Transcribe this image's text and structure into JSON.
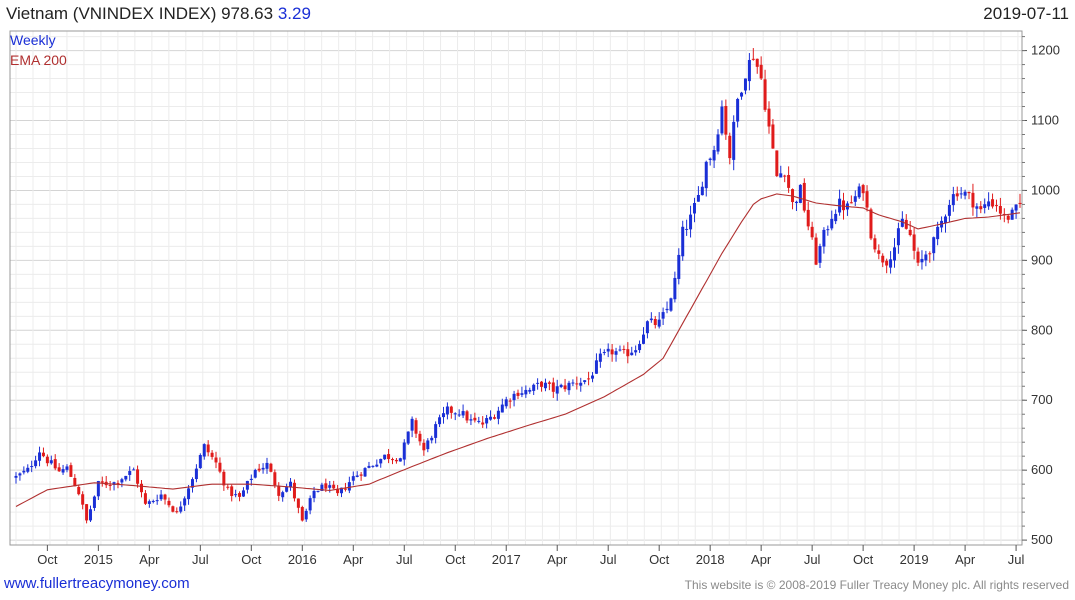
{
  "header": {
    "symbol": "Vietnam (VNINDEX INDEX)",
    "last": "978.63",
    "change": "3.29",
    "date": "2019-07-11"
  },
  "footer": {
    "site": "www.fullertreacymoney.com",
    "copyright": "This website is © 2008-2019 Fuller Treacy Money plc. All rights reserved"
  },
  "chart_data": {
    "type": "candlestick",
    "grid": true,
    "legend": [
      {
        "name": "Weekly",
        "color": "#1a2fd6"
      },
      {
        "name": "EMA 200",
        "color": "#b03030"
      }
    ],
    "colors": {
      "up": "#1a2fd6",
      "down": "#e01b1b",
      "ema": "#b03030"
    },
    "y_ticks": [
      500,
      600,
      700,
      800,
      900,
      1000,
      1100,
      1200
    ],
    "ylim": [
      493,
      1228
    ],
    "x_ticks": [
      {
        "label": "Oct",
        "index": 8
      },
      {
        "label": "2015",
        "index": 21
      },
      {
        "label": "Apr",
        "index": 34
      },
      {
        "label": "Jul",
        "index": 47
      },
      {
        "label": "Oct",
        "index": 60
      },
      {
        "label": "2016",
        "index": 73
      },
      {
        "label": "Apr",
        "index": 86
      },
      {
        "label": "Jul",
        "index": 99
      },
      {
        "label": "Oct",
        "index": 112
      },
      {
        "label": "2017",
        "index": 125
      },
      {
        "label": "Apr",
        "index": 138
      },
      {
        "label": "Jul",
        "index": 151
      },
      {
        "label": "Oct",
        "index": 164
      },
      {
        "label": "2018",
        "index": 177
      },
      {
        "label": "Apr",
        "index": 190
      },
      {
        "label": "Jul",
        "index": 203
      },
      {
        "label": "Oct",
        "index": 216
      },
      {
        "label": "2019",
        "index": 229
      },
      {
        "label": "Apr",
        "index": 242
      },
      {
        "label": "Jul",
        "index": 255
      }
    ],
    "anchors": [
      [
        0,
        590
      ],
      [
        3,
        600
      ],
      [
        6,
        628
      ],
      [
        8,
        614
      ],
      [
        11,
        598
      ],
      [
        13,
        603
      ],
      [
        16,
        568
      ],
      [
        18,
        527
      ],
      [
        21,
        580
      ],
      [
        25,
        582
      ],
      [
        30,
        600
      ],
      [
        33,
        550
      ],
      [
        37,
        565
      ],
      [
        41,
        538
      ],
      [
        45,
        590
      ],
      [
        48,
        634
      ],
      [
        51,
        610
      ],
      [
        54,
        570
      ],
      [
        57,
        560
      ],
      [
        61,
        600
      ],
      [
        64,
        608
      ],
      [
        67,
        568
      ],
      [
        70,
        580
      ],
      [
        73,
        525
      ],
      [
        76,
        570
      ],
      [
        79,
        578
      ],
      [
        82,
        564
      ],
      [
        86,
        590
      ],
      [
        90,
        605
      ],
      [
        94,
        620
      ],
      [
        98,
        618
      ],
      [
        101,
        668
      ],
      [
        104,
        628
      ],
      [
        107,
        662
      ],
      [
        110,
        685
      ],
      [
        113,
        684
      ],
      [
        116,
        670
      ],
      [
        119,
        666
      ],
      [
        122,
        680
      ],
      [
        125,
        700
      ],
      [
        128,
        712
      ],
      [
        131,
        714
      ],
      [
        134,
        724
      ],
      [
        137,
        715
      ],
      [
        140,
        720
      ],
      [
        143,
        726
      ],
      [
        146,
        730
      ],
      [
        149,
        760
      ],
      [
        152,
        770
      ],
      [
        155,
        765
      ],
      [
        158,
        775
      ],
      [
        161,
        810
      ],
      [
        164,
        810
      ],
      [
        166,
        830
      ],
      [
        168,
        870
      ],
      [
        170,
        940
      ],
      [
        172,
        960
      ],
      [
        174,
        990
      ],
      [
        176,
        1040
      ],
      [
        178,
        1060
      ],
      [
        180,
        1120
      ],
      [
        182,
        1050
      ],
      [
        184,
        1130
      ],
      [
        186,
        1170
      ],
      [
        188,
        1195
      ],
      [
        190,
        1160
      ],
      [
        192,
        1090
      ],
      [
        194,
        1020
      ],
      [
        196,
        1030
      ],
      [
        198,
        980
      ],
      [
        200,
        1000
      ],
      [
        202,
        950
      ],
      [
        204,
        900
      ],
      [
        206,
        935
      ],
      [
        208,
        965
      ],
      [
        210,
        980
      ],
      [
        212,
        975
      ],
      [
        214,
        990
      ],
      [
        216,
        1005
      ],
      [
        218,
        940
      ],
      [
        220,
        905
      ],
      [
        222,
        900
      ],
      [
        224,
        920
      ],
      [
        226,
        955
      ],
      [
        228,
        935
      ],
      [
        230,
        890
      ],
      [
        232,
        910
      ],
      [
        234,
        925
      ],
      [
        236,
        955
      ],
      [
        238,
        985
      ],
      [
        240,
        1000
      ],
      [
        242,
        995
      ],
      [
        244,
        985
      ],
      [
        246,
        970
      ],
      [
        248,
        985
      ],
      [
        250,
        980
      ],
      [
        252,
        960
      ],
      [
        254,
        965
      ],
      [
        256,
        978.63
      ]
    ],
    "ema_anchors": [
      [
        0,
        548
      ],
      [
        8,
        572
      ],
      [
        20,
        582
      ],
      [
        30,
        578
      ],
      [
        40,
        573
      ],
      [
        50,
        580
      ],
      [
        60,
        580
      ],
      [
        70,
        576
      ],
      [
        80,
        571
      ],
      [
        90,
        580
      ],
      [
        100,
        603
      ],
      [
        110,
        625
      ],
      [
        120,
        645
      ],
      [
        130,
        663
      ],
      [
        140,
        680
      ],
      [
        150,
        705
      ],
      [
        160,
        737
      ],
      [
        165,
        760
      ],
      [
        170,
        810
      ],
      [
        175,
        860
      ],
      [
        180,
        910
      ],
      [
        185,
        955
      ],
      [
        188,
        980
      ],
      [
        190,
        988
      ],
      [
        194,
        995
      ],
      [
        198,
        992
      ],
      [
        204,
        982
      ],
      [
        210,
        978
      ],
      [
        216,
        975
      ],
      [
        220,
        965
      ],
      [
        226,
        955
      ],
      [
        230,
        945
      ],
      [
        236,
        952
      ],
      [
        242,
        960
      ],
      [
        248,
        962
      ],
      [
        256,
        968
      ]
    ]
  }
}
